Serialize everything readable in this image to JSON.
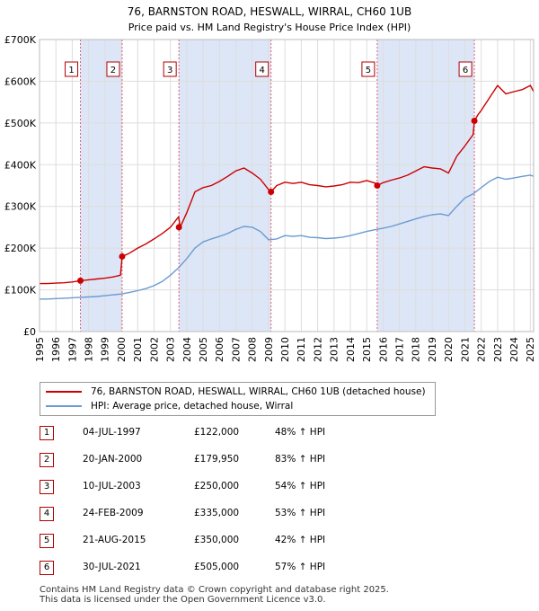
{
  "chart_data": {
    "type": "line",
    "title": "76, BARNSTON ROAD, HESWALL, WIRRAL, CH60 1UB",
    "subtitle": "Price paid vs. HM Land Registry's House Price Index (HPI)",
    "xlim": [
      1995,
      2025.2
    ],
    "ylim": [
      0,
      700000
    ],
    "y_ticks": [
      0,
      100000,
      200000,
      300000,
      400000,
      500000,
      600000,
      700000
    ],
    "y_tick_labels": [
      "£0",
      "£100K",
      "£200K",
      "£300K",
      "£400K",
      "£500K",
      "£600K",
      "£700K"
    ],
    "x_ticks": [
      1995,
      1996,
      1997,
      1998,
      1999,
      2000,
      2001,
      2002,
      2003,
      2004,
      2005,
      2006,
      2007,
      2008,
      2009,
      2010,
      2011,
      2012,
      2013,
      2014,
      2015,
      2016,
      2017,
      2018,
      2019,
      2020,
      2021,
      2022,
      2023,
      2024,
      2025
    ],
    "x_tick_labels": [
      "1995",
      "1996",
      "1997",
      "1998",
      "1999",
      "2000",
      "2001",
      "2002",
      "2003",
      "2004",
      "2005",
      "2006",
      "2007",
      "2008",
      "2009",
      "2010",
      "2011",
      "2012",
      "2013",
      "2014",
      "2015",
      "2016",
      "2017",
      "2018",
      "2019",
      "2020",
      "2021",
      "2022",
      "2023",
      "2024",
      "2025"
    ],
    "shaded_periods": [
      [
        1997.5,
        2000.05
      ],
      [
        2003.52,
        2009.15
      ],
      [
        2015.64,
        2021.58
      ]
    ],
    "series": [
      {
        "name": "76, BARNSTON ROAD, HESWALL, WIRRAL, CH60 1UB (detached house)",
        "color": "#cc0000",
        "x": [
          1995,
          1995.5,
          1996,
          1996.5,
          1997,
          1997.5,
          1998,
          1998.5,
          1999,
          1999.5,
          1999.95,
          2000.05,
          2000.5,
          2001,
          2001.5,
          2002,
          2002.5,
          2003,
          2003.5,
          2003.6,
          2004,
          2004.5,
          2005,
          2005.5,
          2006,
          2006.5,
          2007,
          2007.5,
          2008,
          2008.5,
          2009,
          2009.15,
          2009.5,
          2010,
          2010.5,
          2011,
          2011.5,
          2012,
          2012.5,
          2013,
          2013.5,
          2014,
          2014.5,
          2015,
          2015.5,
          2015.64,
          2016,
          2016.5,
          2017,
          2017.5,
          2018,
          2018.5,
          2019,
          2019.5,
          2020,
          2020.5,
          2021,
          2021.5,
          2021.58,
          2021.8,
          2022,
          2022.5,
          2023,
          2023.5,
          2024,
          2024.5,
          2025,
          2025.2
        ],
        "y": [
          115000,
          115000,
          116000,
          117000,
          119000,
          122000,
          124000,
          126000,
          128000,
          131000,
          135000,
          179950,
          188000,
          200000,
          210000,
          222000,
          235000,
          250000,
          275000,
          250000,
          285000,
          335000,
          345000,
          350000,
          360000,
          372000,
          385000,
          392000,
          380000,
          365000,
          340000,
          335000,
          350000,
          358000,
          355000,
          358000,
          352000,
          350000,
          347000,
          349000,
          352000,
          358000,
          357000,
          362000,
          356000,
          350000,
          357000,
          363000,
          368000,
          375000,
          385000,
          395000,
          392000,
          390000,
          380000,
          420000,
          445000,
          472000,
          505000,
          520000,
          530000,
          560000,
          590000,
          570000,
          575000,
          580000,
          590000,
          575000
        ]
      },
      {
        "name": "HPI: Average price, detached house, Wirral",
        "color": "#6b9bd1",
        "x": [
          1995,
          1995.5,
          1996,
          1996.5,
          1997,
          1997.5,
          1998,
          1998.5,
          1999,
          1999.5,
          2000,
          2000.5,
          2001,
          2001.5,
          2002,
          2002.5,
          2003,
          2003.5,
          2004,
          2004.5,
          2005,
          2005.5,
          2006,
          2006.5,
          2007,
          2007.5,
          2008,
          2008.5,
          2009,
          2009.5,
          2010,
          2010.5,
          2011,
          2011.5,
          2012,
          2012.5,
          2013,
          2013.5,
          2014,
          2014.5,
          2015,
          2015.5,
          2016,
          2016.5,
          2017,
          2017.5,
          2018,
          2018.5,
          2019,
          2019.5,
          2020,
          2020.5,
          2021,
          2021.5,
          2022,
          2022.5,
          2023,
          2023.5,
          2024,
          2024.5,
          2025,
          2025.2
        ],
        "y": [
          78000,
          78000,
          79000,
          80000,
          81000,
          82000,
          83000,
          84000,
          86000,
          88000,
          90000,
          94000,
          98000,
          103000,
          110000,
          120000,
          135000,
          153000,
          175000,
          200000,
          215000,
          222000,
          228000,
          235000,
          245000,
          252000,
          250000,
          240000,
          220000,
          222000,
          230000,
          228000,
          230000,
          226000,
          225000,
          223000,
          224000,
          226000,
          230000,
          235000,
          240000,
          244000,
          248000,
          252000,
          258000,
          264000,
          270000,
          276000,
          280000,
          282000,
          278000,
          300000,
          320000,
          330000,
          345000,
          360000,
          370000,
          365000,
          368000,
          372000,
          375000,
          372000
        ]
      }
    ],
    "sale_markers": [
      {
        "label": "1",
        "x": 1997.5,
        "y": 122000
      },
      {
        "label": "2",
        "x": 2000.05,
        "y": 179950
      },
      {
        "label": "3",
        "x": 2003.52,
        "y": 250000
      },
      {
        "label": "4",
        "x": 2009.15,
        "y": 335000
      },
      {
        "label": "5",
        "x": 2015.64,
        "y": 350000
      },
      {
        "label": "6",
        "x": 2021.58,
        "y": 505000
      }
    ]
  },
  "colors": {
    "shade": "#dde6f7",
    "grid": "#dddddd",
    "price_line": "#cc0000",
    "hpi_line": "#6b9bd1",
    "marker_line": "#e06070"
  },
  "legend": {
    "price_label": "76, BARNSTON ROAD, HESWALL, WIRRAL, CH60 1UB (detached house)",
    "hpi_label": "HPI: Average price, detached house, Wirral"
  },
  "sales": [
    {
      "num": "1",
      "date": "04-JUL-1997",
      "price": "£122,000",
      "hpi": "48% ↑ HPI"
    },
    {
      "num": "2",
      "date": "20-JAN-2000",
      "price": "£179,950",
      "hpi": "83% ↑ HPI"
    },
    {
      "num": "3",
      "date": "10-JUL-2003",
      "price": "£250,000",
      "hpi": "54% ↑ HPI"
    },
    {
      "num": "4",
      "date": "24-FEB-2009",
      "price": "£335,000",
      "hpi": "53% ↑ HPI"
    },
    {
      "num": "5",
      "date": "21-AUG-2015",
      "price": "£350,000",
      "hpi": "42% ↑ HPI"
    },
    {
      "num": "6",
      "date": "30-JUL-2021",
      "price": "£505,000",
      "hpi": "57% ↑ HPI"
    }
  ],
  "footer": {
    "line1": "Contains HM Land Registry data © Crown copyright and database right 2025.",
    "line2": "This data is licensed under the Open Government Licence v3.0."
  }
}
